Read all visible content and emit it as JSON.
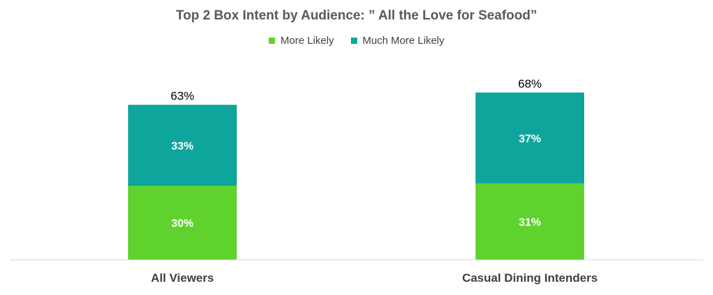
{
  "chart_data": {
    "type": "bar",
    "stacked": true,
    "title": "Top 2 Box Intent by Audience: ” All the Love for Seafood”",
    "categories": [
      "All Viewers",
      "Casual Dining Intenders"
    ],
    "series": [
      {
        "name": "More Likely",
        "values": [
          30,
          31
        ],
        "color": "#5fd22e"
      },
      {
        "name": "Much More Likely",
        "values": [
          33,
          37
        ],
        "color": "#0da59c"
      }
    ],
    "totals": [
      63,
      68
    ],
    "value_suffix": "%",
    "legend_position": "top",
    "ylim": [
      0,
      68
    ],
    "grid": false
  }
}
